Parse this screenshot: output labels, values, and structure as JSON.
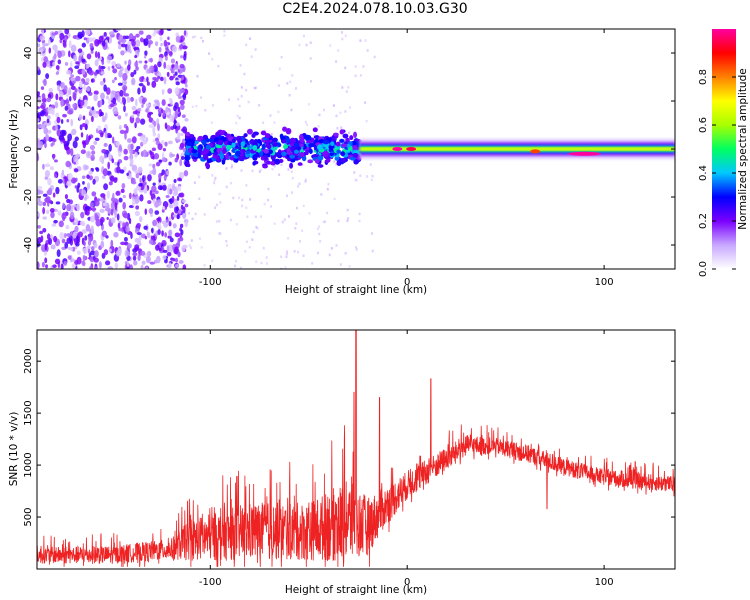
{
  "title": "C2E4.2024.078.10.03.G30",
  "chart_data": [
    {
      "type": "heatmap",
      "xlabel": "Height of straight line (km)",
      "ylabel": "Frequency (Hz)",
      "xlim": [
        -188,
        136
      ],
      "ylim": [
        -50,
        50
      ],
      "xticks": [
        -100,
        0,
        100
      ],
      "xtick_labels": [
        "-100",
        "0",
        "100"
      ],
      "yticks": [
        -40,
        -20,
        0,
        20,
        40
      ],
      "ytick_labels": [
        "-40",
        "-20",
        "0",
        "20",
        "40"
      ],
      "colorbar": {
        "label": "Normalized spectral amplitude",
        "range": [
          0.0,
          1.0
        ],
        "ticks": [
          0.0,
          0.2,
          0.4,
          0.6,
          0.8
        ],
        "tick_labels": [
          "0.0",
          "0.2",
          "0.4",
          "0.6",
          "0.8"
        ],
        "colormap": [
          "#ffffff",
          "#c8a8ff",
          "#7a00ff",
          "#0000ff",
          "#00c8ff",
          "#00ff60",
          "#a8ff00",
          "#ffff00",
          "#ff8000",
          "#ff0000",
          "#ff00a0"
        ]
      },
      "regions": [
        {
          "x": [
            -188,
            -112
          ],
          "f_spread": 50,
          "amplitude": 0.15,
          "description_level": "scattered noise"
        },
        {
          "x": [
            -112,
            -24
          ],
          "f_spread": 9,
          "amplitude": 0.35
        },
        {
          "x": [
            -24,
            136
          ],
          "f_center": 0,
          "f_spread": 3,
          "amplitude": 0.7
        }
      ],
      "hotspots": [
        {
          "x": -5,
          "f": 0,
          "amplitude": 1.0
        },
        {
          "x": 2,
          "f": 0,
          "amplitude": 0.95
        },
        {
          "x": 65,
          "f": -1,
          "amplitude": 0.85
        },
        {
          "x": 90,
          "f": -2,
          "amplitude": 1.0
        }
      ],
      "grid": false
    },
    {
      "type": "line",
      "xlabel": "Height of straight line (km)",
      "ylabel": "SNR (10 * v/v)",
      "xlim": [
        -188,
        136
      ],
      "ylim": [
        0,
        2300
      ],
      "xticks": [
        -100,
        0,
        100
      ],
      "xtick_labels": [
        "-100",
        "0",
        "100"
      ],
      "yticks": [
        500,
        1000,
        1500,
        2000
      ],
      "ytick_labels": [
        "500",
        "1000",
        "1500",
        "2000"
      ],
      "series": [
        {
          "color": "#ee2222",
          "envelope": [
            {
              "x": -188,
              "base": 100,
              "noise": 200
            },
            {
              "x": -150,
              "base": 100,
              "noise": 220
            },
            {
              "x": -120,
              "base": 150,
              "noise": 250
            },
            {
              "x": -110,
              "base": 200,
              "noise": 500
            },
            {
              "x": -80,
              "base": 250,
              "noise": 700
            },
            {
              "x": -50,
              "base": 250,
              "noise": 700
            },
            {
              "x": -30,
              "base": 300,
              "noise": 1000
            },
            {
              "x": -20,
              "base": 300,
              "noise": 700
            },
            {
              "x": -12,
              "base": 500,
              "noise": 500
            },
            {
              "x": 0,
              "base": 750,
              "noise": 350
            },
            {
              "x": 15,
              "base": 950,
              "noise": 300
            },
            {
              "x": 30,
              "base": 1150,
              "noise": 250
            },
            {
              "x": 45,
              "base": 1150,
              "noise": 200
            },
            {
              "x": 60,
              "base": 1080,
              "noise": 220
            },
            {
              "x": 80,
              "base": 950,
              "noise": 200
            },
            {
              "x": 100,
              "base": 850,
              "noise": 200
            },
            {
              "x": 136,
              "base": 780,
              "noise": 200
            }
          ],
          "spikes": [
            {
              "x": -26,
              "y": 2300
            },
            {
              "x": -27,
              "y": 1700
            },
            {
              "x": -14,
              "y": 1650
            },
            {
              "x": 12,
              "y": 1830
            },
            {
              "x": 71,
              "y": 580
            }
          ]
        }
      ],
      "grid": false
    }
  ]
}
